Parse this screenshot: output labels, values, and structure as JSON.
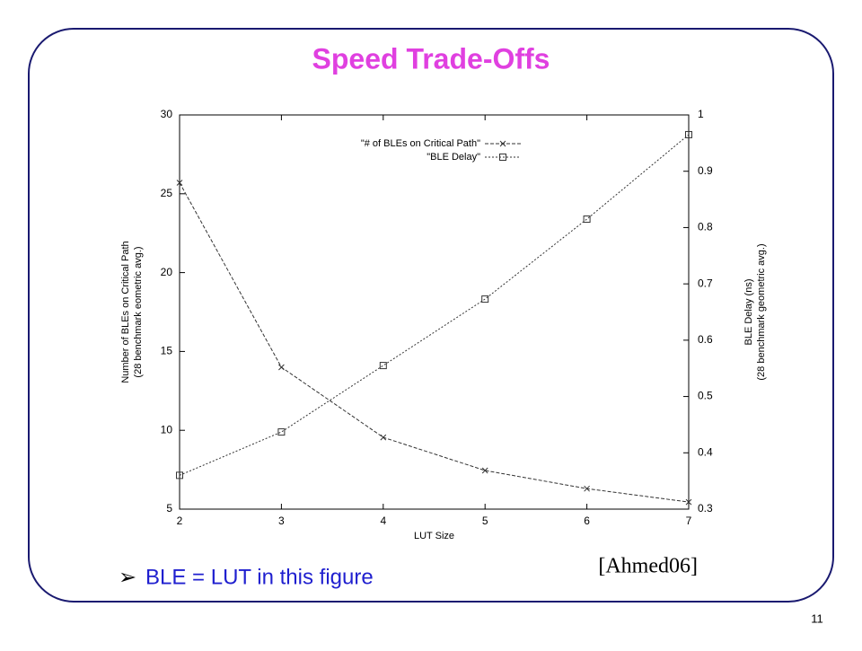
{
  "slide": {
    "title": "Speed Trade-Offs",
    "bullet": "BLE = LUT in this figure",
    "citation": "[Ahmed06]",
    "page_number": "11"
  },
  "chart_data": {
    "type": "line",
    "xlabel": "LUT Size",
    "ylabel": [
      "Number of BLEs on Critical Path",
      "(28 benchmark eometric avg.)"
    ],
    "y2label": [
      "BLE Delay (ns)",
      "(28 benchmark geometric avg.)"
    ],
    "x": [
      2,
      3,
      4,
      5,
      6,
      7
    ],
    "series": [
      {
        "name": "\"# of BLEs on Critical Path\"",
        "color": "#333333",
        "marker": "x",
        "values": [
          25.7,
          14.0,
          9.55,
          7.45,
          6.3,
          5.45
        ]
      },
      {
        "name": "\"BLE Delay\"",
        "color": "#333333",
        "marker": "square",
        "axis": "y2",
        "values": [
          0.36,
          0.437,
          0.555,
          0.673,
          0.815,
          0.965
        ]
      }
    ],
    "xlim": [
      2,
      7
    ],
    "xticks": [
      2,
      3,
      4,
      5,
      6,
      7
    ],
    "ylim": [
      5,
      30
    ],
    "yticks": [
      5,
      10,
      15,
      20,
      25,
      30
    ],
    "y2lim": [
      0.3,
      1
    ],
    "y2ticks": [
      0.3,
      0.4,
      0.5,
      0.6,
      0.7,
      0.8,
      0.9,
      1
    ],
    "grid": false,
    "legend": "top-right"
  }
}
